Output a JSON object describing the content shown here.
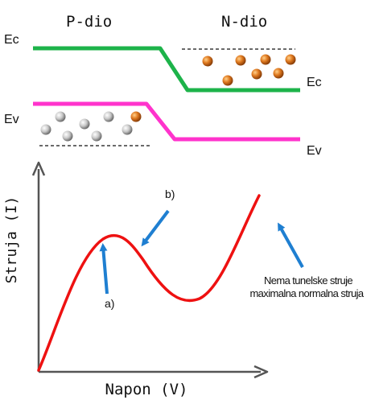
{
  "band_diagram": {
    "p_label": "P-dio",
    "n_label": "N-dio",
    "ec_left": "Ec",
    "ev_left": "Ev",
    "ec_right": "Ec",
    "ev_right": "Ev",
    "conduction_color": "#1db34a",
    "valence_color": "#ff33cc",
    "electron_color": "#d9701c",
    "hole_color": "#c8c8c8"
  },
  "graph": {
    "y_axis_label": "Struja (I)",
    "x_axis_label": "Napon (V)",
    "curve_color": "#ee1111",
    "arrow_color": "#1f7fd1",
    "label_a": "a)",
    "label_b": "b)",
    "note_line1": "Nema tunelske struje",
    "note_line2": "maximalna normalna struja"
  }
}
